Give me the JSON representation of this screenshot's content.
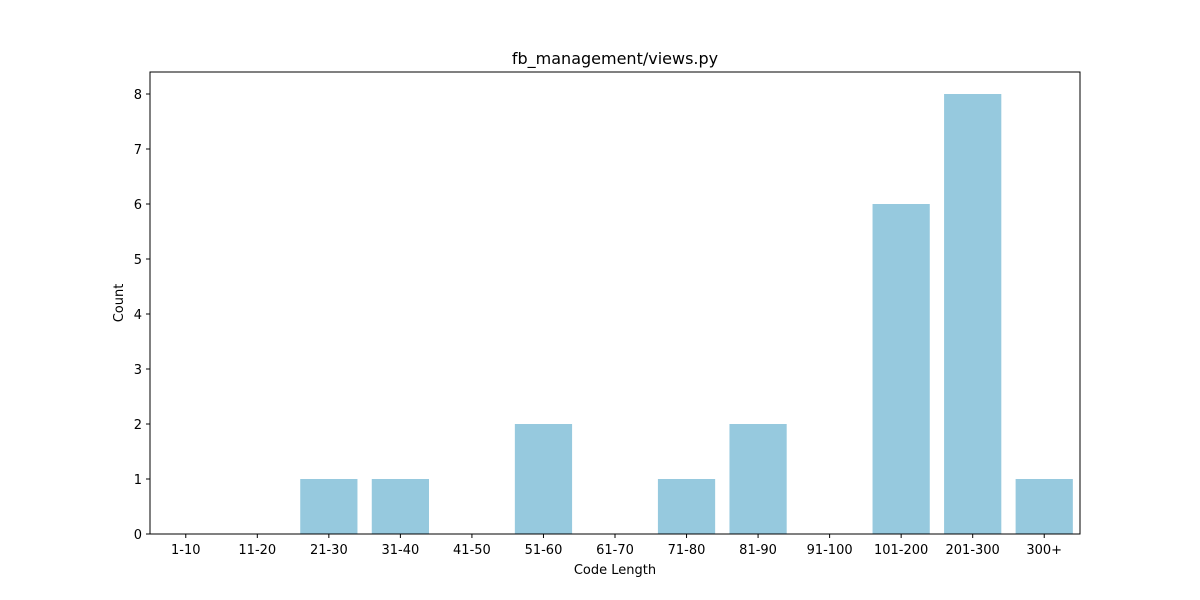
{
  "chart_data": {
    "type": "bar",
    "title": "fb_management/views.py",
    "xlabel": "Code Length",
    "ylabel": "Count",
    "categories": [
      "1-10",
      "11-20",
      "21-30",
      "31-40",
      "41-50",
      "51-60",
      "61-70",
      "71-80",
      "81-90",
      "91-100",
      "101-200",
      "201-300",
      "300+"
    ],
    "values": [
      0,
      0,
      1,
      1,
      0,
      2,
      0,
      1,
      2,
      0,
      6,
      8,
      1
    ],
    "ylim": [
      0,
      8.4
    ],
    "yticks": [
      0,
      1,
      2,
      3,
      4,
      5,
      6,
      7,
      8
    ],
    "bar_color": "#96c9de",
    "grid": false,
    "legend": "none"
  }
}
